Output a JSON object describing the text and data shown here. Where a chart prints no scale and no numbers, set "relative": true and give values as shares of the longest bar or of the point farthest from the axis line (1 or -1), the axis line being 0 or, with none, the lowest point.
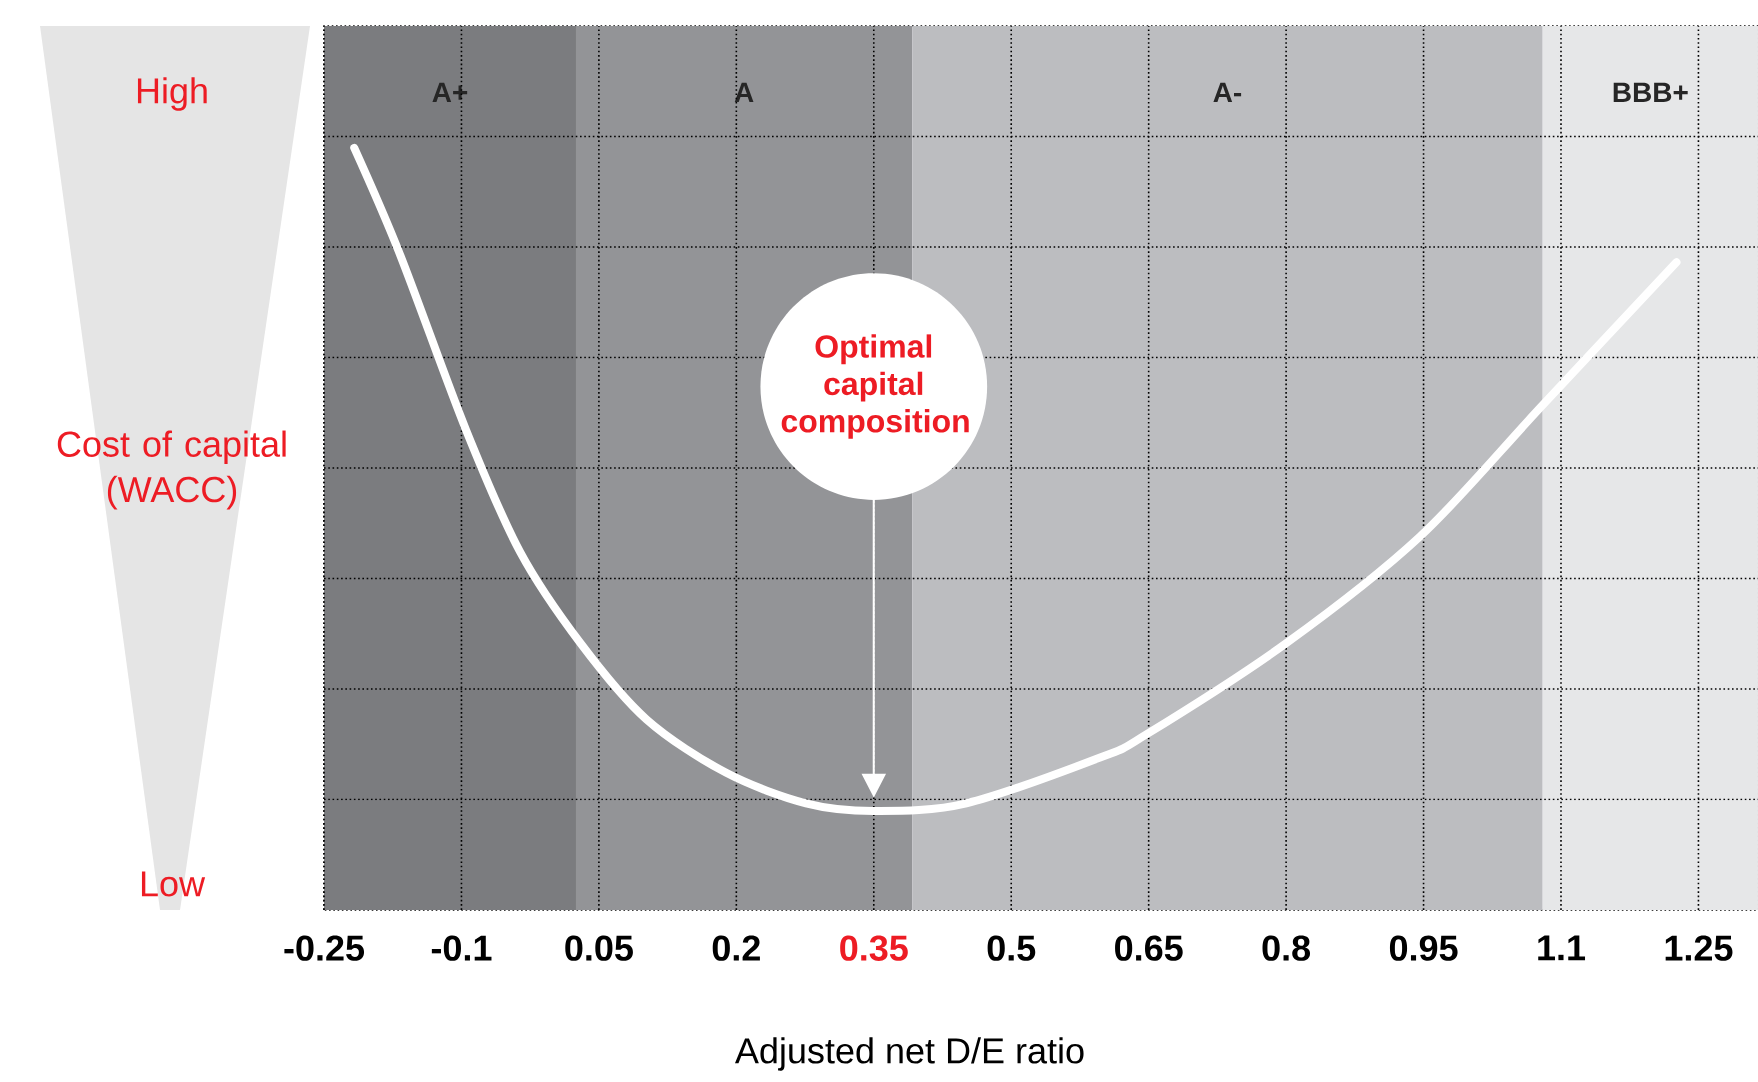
{
  "chart_data": {
    "type": "line",
    "relative": true,
    "xlabel": "Adjusted net D/E ratio",
    "ylabel": "Cost of capital (WACC)",
    "xlim": [
      -0.25,
      1.315
    ],
    "xticks": [
      -0.25,
      -0.1,
      0.05,
      0.2,
      0.35,
      0.5,
      0.65,
      0.8,
      0.95,
      1.1,
      1.25
    ],
    "grid": true,
    "series": [
      {
        "color": "#ffffff",
        "x": [
          -0.217,
          -0.167,
          -0.095,
          -0.036,
          0.03,
          0.102,
          0.189,
          0.276,
          0.35,
          0.451,
          0.597,
          0.647,
          0.8,
          0.946,
          1.078,
          1.226
        ],
        "values": [
          1.0,
          0.86,
          0.63,
          0.47,
          0.35,
          0.25,
          0.18,
          0.14,
          0.13,
          0.14,
          0.2,
          0.23,
          0.35,
          0.49,
          0.66,
          0.85
        ]
      }
    ],
    "bands": [
      {
        "axis": "x",
        "from": -0.25,
        "to": 0.025,
        "label": "A+",
        "color": "#7b7c7f"
      },
      {
        "axis": "x",
        "from": 0.025,
        "to": 0.392,
        "label": "A",
        "color": "#939497"
      },
      {
        "axis": "x",
        "from": 0.392,
        "to": 1.08,
        "label": "A-",
        "color": "#bcbdc0"
      },
      {
        "axis": "x",
        "from": 1.08,
        "to": 1.315,
        "label": "BBB+",
        "color": "#e6e7e8"
      }
    ],
    "annotations": [
      "Optimal capital composition",
      "High",
      "Low"
    ]
  }
}
